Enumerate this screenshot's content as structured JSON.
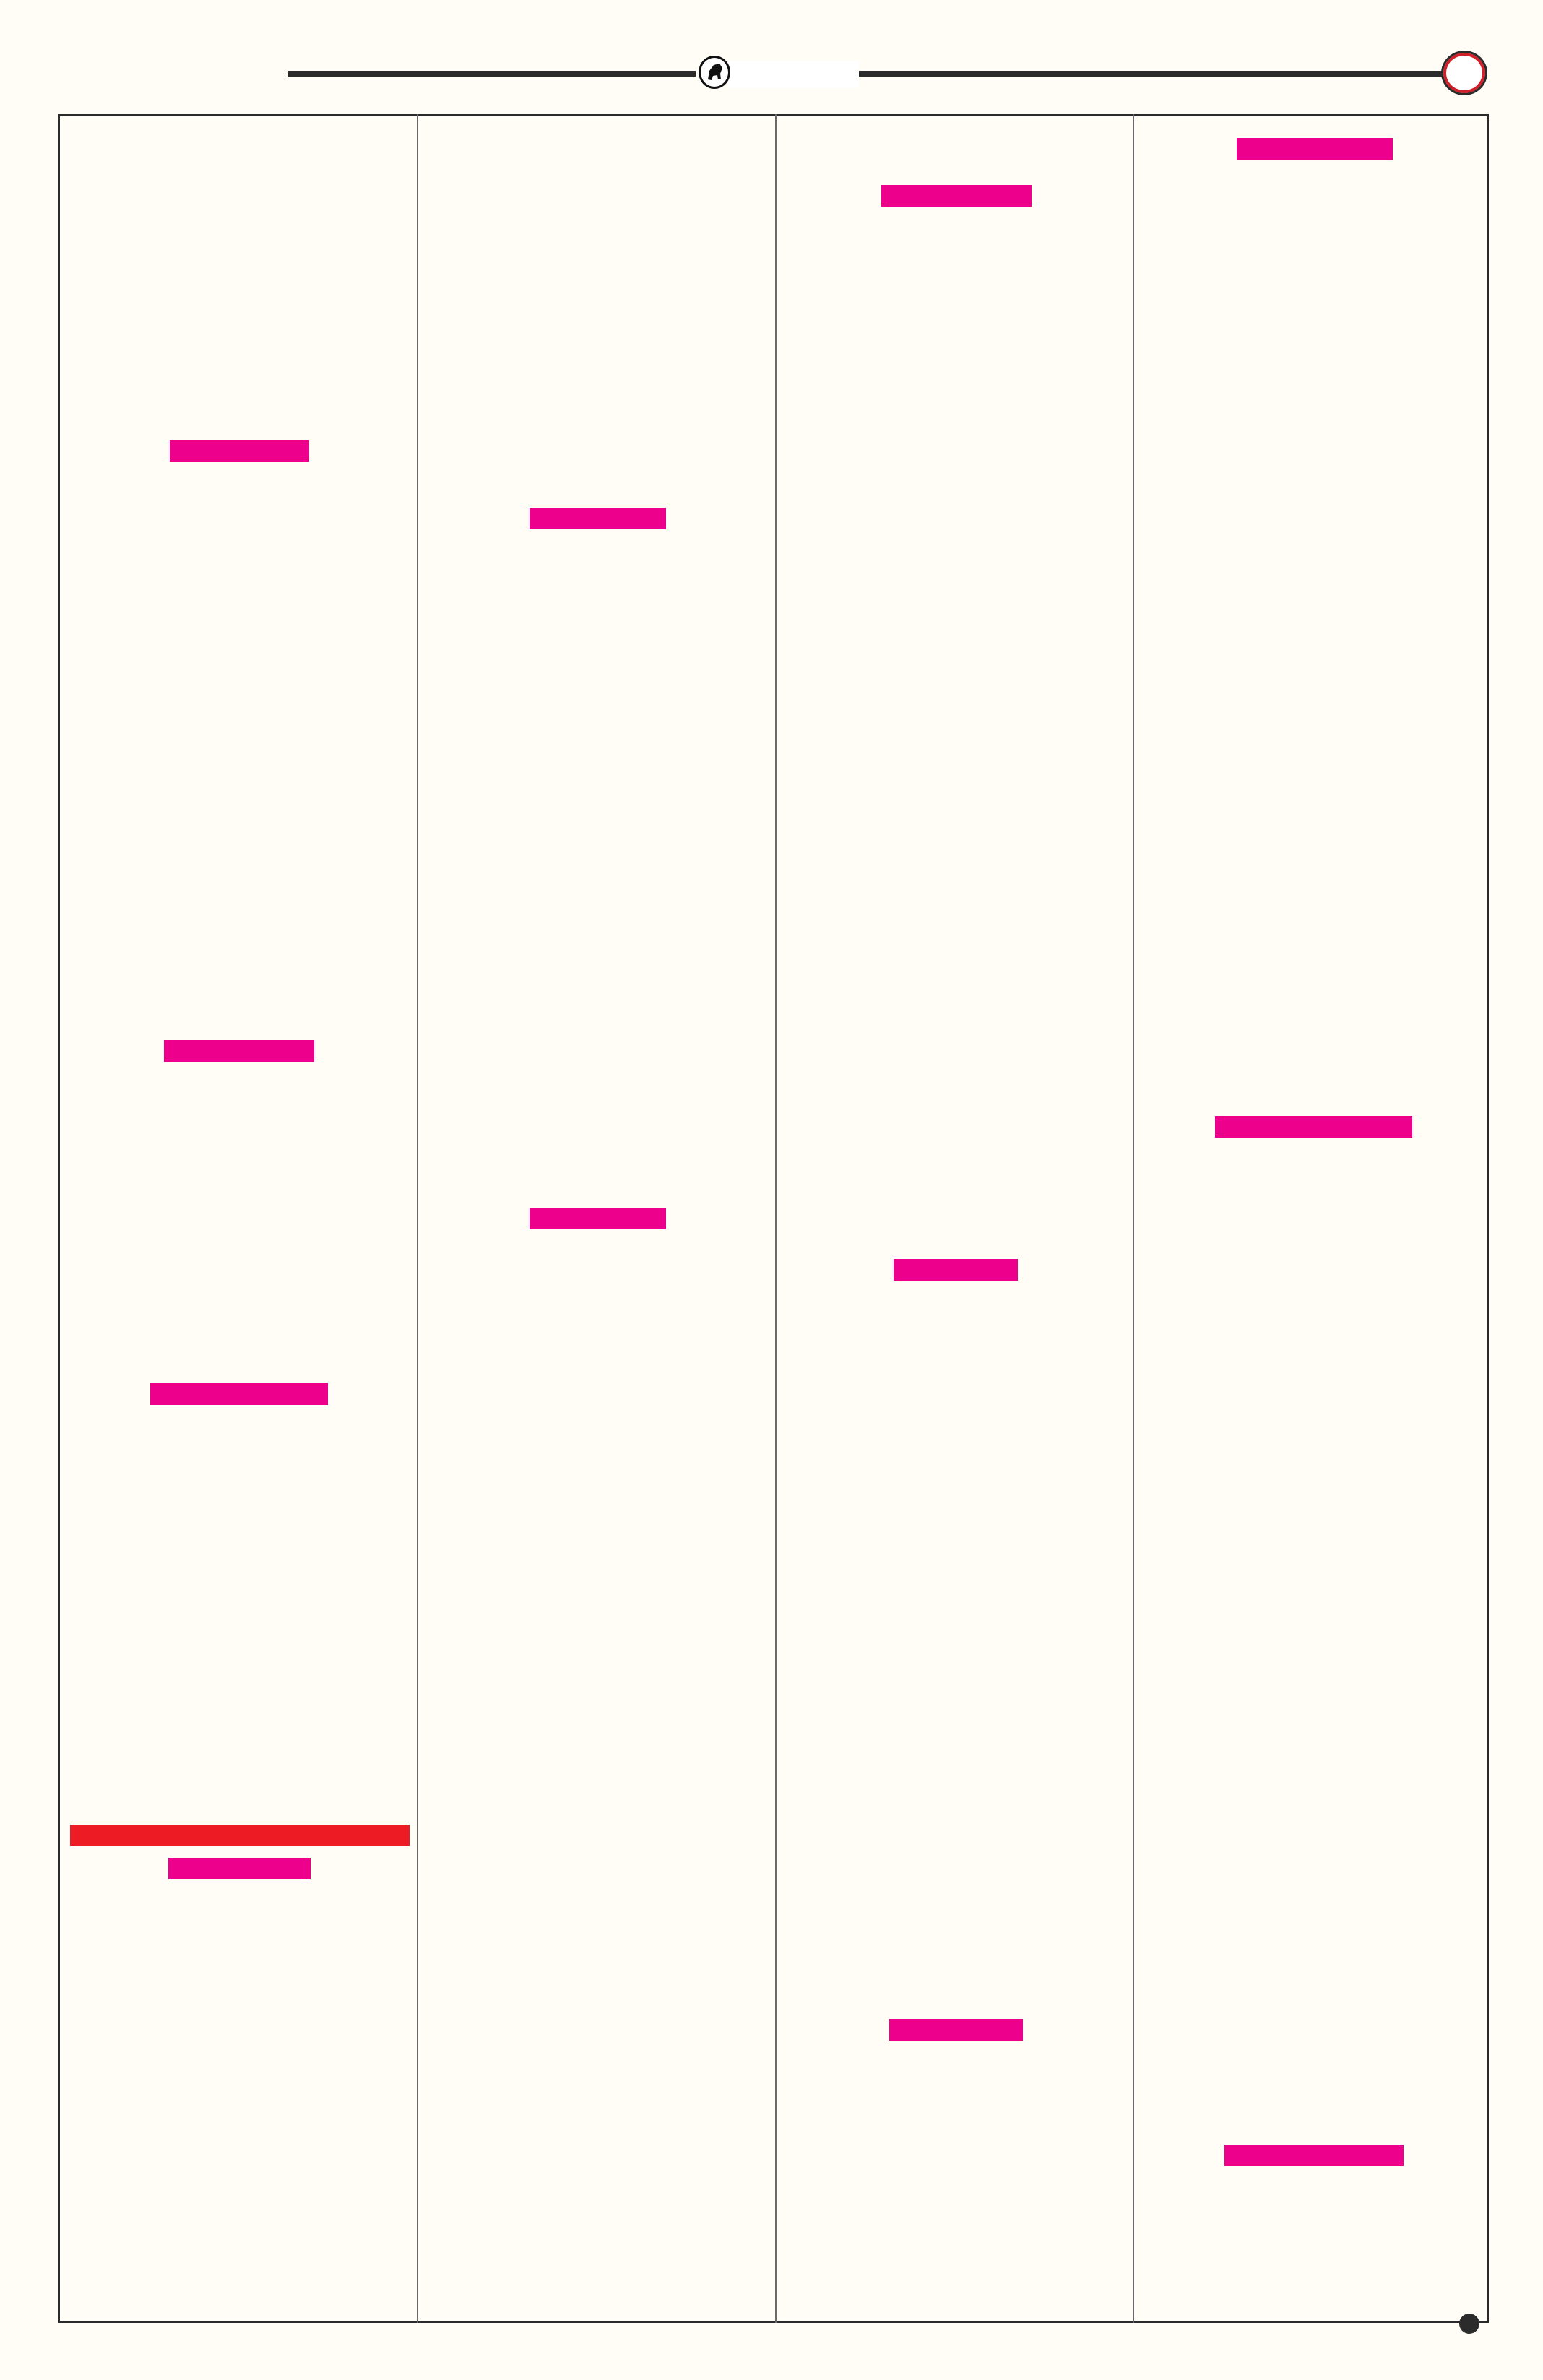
{
  "header": {
    "logo_icon": "bull-emblem-icon",
    "page_marker_icon": "red-ring-icon"
  },
  "colors": {
    "background": "#fffdf6",
    "rule": "#2b2b2b",
    "placeholder_bar": "#ec008c",
    "highlight_bar": "#ed1c24",
    "marker_ring": "#d0202a"
  },
  "footer": {
    "corner_dot_icon": "dot-icon"
  }
}
